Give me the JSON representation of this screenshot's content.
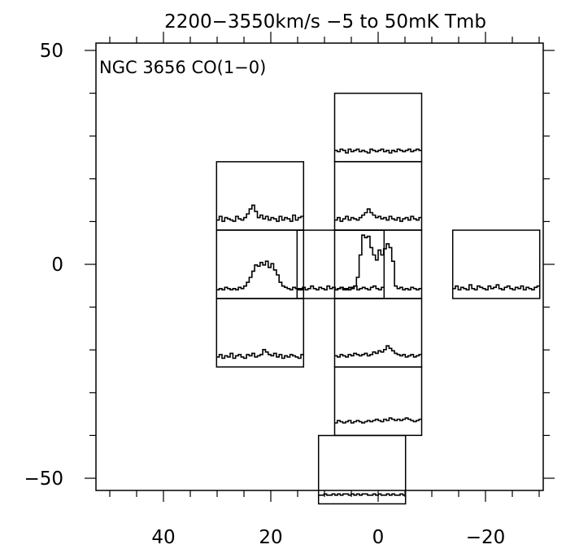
{
  "chart_data": {
    "type": "spectral-map",
    "header": "2200−3550km/s  −5 to 50mK Tmb",
    "title": "NGC 3656 CO(1−0)",
    "x_ticks": [
      "40",
      "20",
      "0",
      "−20"
    ],
    "y_ticks": [
      "50",
      "0",
      "−50"
    ],
    "xlim": [
      50,
      -30
    ],
    "ylim": [
      -52,
      52
    ],
    "velocity_range_kms": [
      2200,
      3550
    ],
    "temperature_range_mK": [
      -5,
      50
    ],
    "spectra": [
      {
        "x": 7,
        "y": 0,
        "values": [
          3,
          2,
          4,
          2,
          3,
          5,
          3,
          2,
          4,
          3,
          2,
          5,
          3,
          4,
          2,
          3,
          4,
          3,
          2,
          4,
          3,
          5,
          2,
          3,
          4,
          3,
          2,
          4,
          5,
          3,
          2,
          4
        ]
      },
      {
        "x": 22,
        "y": 0,
        "values": [
          2,
          3,
          2,
          4,
          3,
          2,
          3,
          2,
          4,
          3,
          5,
          8,
          12,
          17,
          22,
          21,
          24,
          22,
          25,
          20,
          23,
          18,
          14,
          8,
          5,
          4,
          3,
          2,
          4,
          3,
          2,
          3
        ]
      },
      {
        "x": 0,
        "y": 0,
        "values": [
          2,
          3,
          4,
          2,
          3,
          2,
          4,
          5,
          12,
          30,
          46,
          44,
          45,
          36,
          30,
          26,
          34,
          30,
          35,
          39,
          36,
          25,
          5,
          3,
          4,
          2,
          3,
          2,
          4,
          3,
          2,
          3
        ]
      },
      {
        "x": -22,
        "y": 0,
        "values": [
          3,
          5,
          2,
          4,
          3,
          2,
          6,
          3,
          2,
          5,
          4,
          3,
          2,
          5,
          3,
          4,
          6,
          3,
          2,
          4,
          5,
          3,
          2,
          4,
          3,
          5,
          2,
          4,
          3,
          2,
          4,
          5
        ]
      },
      {
        "x": 22,
        "y": 16,
        "values": [
          3,
          6,
          2,
          5,
          4,
          3,
          2,
          6,
          4,
          3,
          5,
          8,
          12,
          15,
          10,
          5,
          7,
          4,
          6,
          3,
          5,
          4,
          2,
          6,
          3,
          5,
          4,
          2,
          7,
          3,
          5,
          6
        ]
      },
      {
        "x": 0,
        "y": 16,
        "values": [
          3,
          5,
          2,
          4,
          6,
          3,
          5,
          4,
          3,
          5,
          7,
          9,
          12,
          9,
          7,
          5,
          6,
          4,
          5,
          3,
          6,
          4,
          3,
          5,
          2,
          4,
          5,
          3,
          6,
          4,
          3,
          5
        ]
      },
      {
        "x": 0,
        "y": 32,
        "values": [
          4,
          3,
          5,
          4,
          2,
          5,
          3,
          4,
          5,
          3,
          4,
          3,
          2,
          5,
          4,
          3,
          4,
          5,
          3,
          4,
          2,
          4,
          3,
          5,
          4,
          3,
          4,
          5,
          3,
          4,
          5,
          4
        ]
      },
      {
        "x": 22,
        "y": -16,
        "values": [
          3,
          5,
          2,
          4,
          3,
          6,
          2,
          4,
          5,
          3,
          2,
          5,
          4,
          6,
          3,
          4,
          5,
          9,
          7,
          5,
          4,
          6,
          3,
          5,
          2,
          4,
          3,
          5,
          4,
          3,
          2,
          5
        ]
      },
      {
        "x": 0,
        "y": -16,
        "values": [
          4,
          3,
          5,
          4,
          3,
          5,
          4,
          6,
          5,
          4,
          5,
          6,
          4,
          5,
          7,
          6,
          8,
          7,
          9,
          12,
          10,
          8,
          6,
          5,
          4,
          5,
          3,
          4,
          5,
          3,
          4,
          5
        ]
      },
      {
        "x": 0,
        "y": -32,
        "values": [
          5,
          7,
          6,
          5,
          6,
          7,
          5,
          6,
          7,
          6,
          5,
          6,
          7,
          6,
          7,
          8,
          7,
          6,
          8,
          7,
          9,
          8,
          7,
          8,
          7,
          8,
          9,
          8,
          7,
          6,
          7,
          8
        ]
      },
      {
        "x": 3,
        "y": -48,
        "values": [
          2,
          2,
          3,
          2,
          2,
          3,
          2,
          3,
          2,
          3,
          3,
          2,
          3,
          2,
          3,
          2,
          3,
          3,
          2,
          2,
          3,
          2,
          3,
          2,
          2,
          3,
          2,
          3,
          2,
          2,
          3,
          2
        ]
      }
    ],
    "grid": false,
    "legend": "none"
  }
}
